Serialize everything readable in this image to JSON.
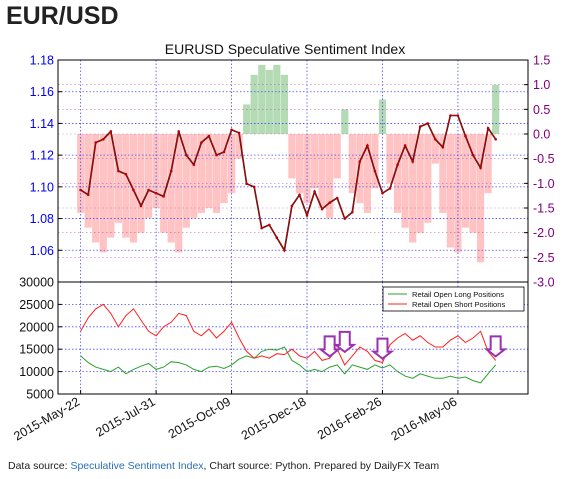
{
  "header": {
    "title": "EUR/USD"
  },
  "footer": {
    "prefix": "Data source: ",
    "link1": "Speculative Sentiment Index",
    "middle": ", Chart source: Python",
    "suffix": ". Prepared by DailyFX Team"
  },
  "colors": {
    "price": "#c00000",
    "ssi_positive": "#a8d5a8",
    "ssi_negative": "#ffb8b8",
    "long": "#2ca02c",
    "short": "#ff2020",
    "arrow": "#9b30b0",
    "left_axis": "#0000ff",
    "right_axis": "#800080"
  },
  "chart_data": [
    {
      "type": "line",
      "title": "EURUSD Speculative Sentiment Index",
      "x_ticks": [
        "2015-May-22",
        "2015-Jul-31",
        "2015-Oct-09",
        "2015-Dec-18",
        "2016-Feb-26",
        "2016-May-06"
      ],
      "x_range": [
        "2015-05-01",
        "2016-07-10"
      ],
      "ylim_left": [
        1.04,
        1.18
      ],
      "yticks_left": [
        "1.06",
        "1.08",
        "1.10",
        "1.12",
        "1.14",
        "1.16",
        "1.18"
      ],
      "ylim_right": [
        -3.0,
        1.5
      ],
      "yticks_right": [
        "-3.0",
        "-2.5",
        "-2.0",
        "-1.5",
        "-1.0",
        "-0.5",
        "0.0",
        "0.5",
        "1.0",
        "1.5"
      ],
      "price_series": {
        "dates": [
          "2015-05-22",
          "2015-05-29",
          "2015-06-05",
          "2015-06-12",
          "2015-06-19",
          "2015-06-26",
          "2015-07-03",
          "2015-07-10",
          "2015-07-17",
          "2015-07-24",
          "2015-07-31",
          "2015-08-07",
          "2015-08-14",
          "2015-08-21",
          "2015-08-28",
          "2015-09-04",
          "2015-09-11",
          "2015-09-18",
          "2015-09-25",
          "2015-10-02",
          "2015-10-09",
          "2015-10-16",
          "2015-10-23",
          "2015-10-30",
          "2015-11-06",
          "2015-11-13",
          "2015-11-20",
          "2015-11-27",
          "2015-12-04",
          "2015-12-11",
          "2015-12-18",
          "2015-12-25",
          "2016-01-01",
          "2016-01-08",
          "2016-01-15",
          "2016-01-22",
          "2016-01-29",
          "2016-02-05",
          "2016-02-12",
          "2016-02-19",
          "2016-02-26",
          "2016-03-04",
          "2016-03-11",
          "2016-03-18",
          "2016-03-25",
          "2016-04-01",
          "2016-04-08",
          "2016-04-15",
          "2016-04-22",
          "2016-04-29",
          "2016-05-06",
          "2016-05-13",
          "2016-05-20",
          "2016-05-27",
          "2016-06-03",
          "2016-06-10"
        ],
        "values": [
          1.098,
          1.095,
          1.128,
          1.13,
          1.135,
          1.11,
          1.108,
          1.098,
          1.088,
          1.098,
          1.096,
          1.094,
          1.11,
          1.135,
          1.12,
          1.114,
          1.128,
          1.132,
          1.12,
          1.122,
          1.136,
          1.134,
          1.102,
          1.1,
          1.074,
          1.076,
          1.068,
          1.06,
          1.088,
          1.095,
          1.082,
          1.097,
          1.086,
          1.09,
          1.093,
          1.08,
          1.084,
          1.116,
          1.126,
          1.11,
          1.096,
          1.099,
          1.114,
          1.126,
          1.116,
          1.138,
          1.14,
          1.13,
          1.125,
          1.145,
          1.145,
          1.132,
          1.12,
          1.112,
          1.137,
          1.13
        ]
      },
      "ssi_series": {
        "dates": [
          "2015-05-22",
          "2015-05-29",
          "2015-06-05",
          "2015-06-12",
          "2015-06-19",
          "2015-06-26",
          "2015-07-03",
          "2015-07-10",
          "2015-07-17",
          "2015-07-24",
          "2015-07-31",
          "2015-08-07",
          "2015-08-14",
          "2015-08-21",
          "2015-08-28",
          "2015-09-04",
          "2015-09-11",
          "2015-09-18",
          "2015-09-25",
          "2015-10-02",
          "2015-10-09",
          "2015-10-16",
          "2015-10-23",
          "2015-10-30",
          "2015-11-06",
          "2015-11-13",
          "2015-11-20",
          "2015-11-27",
          "2015-12-04",
          "2015-12-11",
          "2015-12-18",
          "2015-12-25",
          "2016-01-01",
          "2016-01-08",
          "2016-01-15",
          "2016-01-22",
          "2016-01-29",
          "2016-02-05",
          "2016-02-12",
          "2016-02-19",
          "2016-02-26",
          "2016-03-04",
          "2016-03-11",
          "2016-03-18",
          "2016-03-25",
          "2016-04-01",
          "2016-04-08",
          "2016-04-15",
          "2016-04-22",
          "2016-04-29",
          "2016-05-06",
          "2016-05-13",
          "2016-05-20",
          "2016-05-27",
          "2016-06-03",
          "2016-06-10"
        ],
        "values": [
          -1.6,
          -1.9,
          -2.2,
          -2.4,
          -2.1,
          -1.8,
          -2.1,
          -2.2,
          -2.0,
          -1.7,
          -1.5,
          -2.0,
          -2.2,
          -2.4,
          -1.9,
          -1.7,
          -1.6,
          -1.5,
          -1.6,
          -1.4,
          -1.2,
          -0.5,
          0.6,
          1.2,
          1.4,
          1.3,
          1.4,
          1.2,
          -0.9,
          -1.2,
          -1.4,
          -1.1,
          -1.5,
          -1.7,
          -0.9,
          0.5,
          -1.2,
          -1.4,
          -1.6,
          -1.1,
          0.7,
          -1.0,
          -1.6,
          -1.9,
          -2.2,
          -2.0,
          -1.8,
          -0.6,
          -1.6,
          -2.3,
          -2.4,
          -1.9,
          -2.0,
          -2.6,
          -1.2,
          1.0
        ]
      }
    },
    {
      "type": "line",
      "ylim": [
        5000,
        30000
      ],
      "yticks": [
        "5000",
        "10000",
        "15000",
        "20000",
        "25000",
        "30000"
      ],
      "x_range": [
        "2015-05-01",
        "2016-07-10"
      ],
      "legend_position": "top-right",
      "series": [
        {
          "name": "Retail Open Long Positions",
          "dates": [
            "2015-05-22",
            "2015-05-29",
            "2015-06-05",
            "2015-06-12",
            "2015-06-19",
            "2015-06-26",
            "2015-07-03",
            "2015-07-10",
            "2015-07-17",
            "2015-07-24",
            "2015-07-31",
            "2015-08-07",
            "2015-08-14",
            "2015-08-21",
            "2015-08-28",
            "2015-09-04",
            "2015-09-11",
            "2015-09-18",
            "2015-09-25",
            "2015-10-02",
            "2015-10-09",
            "2015-10-16",
            "2015-10-23",
            "2015-10-30",
            "2015-11-06",
            "2015-11-13",
            "2015-11-20",
            "2015-11-27",
            "2015-12-04",
            "2015-12-11",
            "2015-12-18",
            "2015-12-25",
            "2016-01-01",
            "2016-01-08",
            "2016-01-15",
            "2016-01-22",
            "2016-01-29",
            "2016-02-05",
            "2016-02-12",
            "2016-02-19",
            "2016-02-26",
            "2016-03-04",
            "2016-03-11",
            "2016-03-18",
            "2016-03-25",
            "2016-04-01",
            "2016-04-08",
            "2016-04-15",
            "2016-04-22",
            "2016-04-29",
            "2016-05-06",
            "2016-05-13",
            "2016-05-20",
            "2016-05-27",
            "2016-06-03",
            "2016-06-10"
          ],
          "values": [
            13500,
            12000,
            11000,
            10500,
            10000,
            11000,
            9500,
            10500,
            11200,
            11800,
            10500,
            11000,
            12200,
            12000,
            11500,
            10500,
            10000,
            11000,
            11200,
            10700,
            11500,
            12800,
            13500,
            13000,
            14500,
            15000,
            14800,
            15500,
            12500,
            11500,
            10000,
            10500,
            10000,
            11000,
            11500,
            9500,
            11500,
            11000,
            10500,
            11500,
            10800,
            11500,
            10000,
            9000,
            8500,
            9500,
            9000,
            8500,
            8500,
            9000,
            8500,
            8800,
            8000,
            7500,
            9500,
            11500
          ]
        },
        {
          "name": "Retail Open Short Positions",
          "dates": [
            "2015-05-22",
            "2015-05-29",
            "2015-06-05",
            "2015-06-12",
            "2015-06-19",
            "2015-06-26",
            "2015-07-03",
            "2015-07-10",
            "2015-07-17",
            "2015-07-24",
            "2015-07-31",
            "2015-08-07",
            "2015-08-14",
            "2015-08-21",
            "2015-08-28",
            "2015-09-04",
            "2015-09-11",
            "2015-09-18",
            "2015-09-25",
            "2015-10-02",
            "2015-10-09",
            "2015-10-16",
            "2015-10-23",
            "2015-10-30",
            "2015-11-06",
            "2015-11-13",
            "2015-11-20",
            "2015-11-27",
            "2015-12-04",
            "2015-12-11",
            "2015-12-18",
            "2015-12-25",
            "2016-01-01",
            "2016-01-08",
            "2016-01-15",
            "2016-01-22",
            "2016-01-29",
            "2016-02-05",
            "2016-02-12",
            "2016-02-19",
            "2016-02-26",
            "2016-03-04",
            "2016-03-11",
            "2016-03-18",
            "2016-03-25",
            "2016-04-01",
            "2016-04-08",
            "2016-04-15",
            "2016-04-22",
            "2016-04-29",
            "2016-05-06",
            "2016-05-13",
            "2016-05-20",
            "2016-05-27",
            "2016-06-03",
            "2016-06-10"
          ],
          "values": [
            19000,
            22000,
            24000,
            25000,
            23000,
            20000,
            22500,
            24000,
            21500,
            19000,
            18000,
            20000,
            21000,
            23000,
            22500,
            19000,
            18000,
            19500,
            17500,
            19000,
            21000,
            17500,
            14500,
            13000,
            13500,
            13000,
            14000,
            13800,
            15000,
            13500,
            13000,
            14500,
            12500,
            13000,
            15000,
            11500,
            13500,
            15500,
            14500,
            12500,
            12000,
            16000,
            17500,
            18500,
            17000,
            18000,
            16500,
            15500,
            15500,
            17000,
            18000,
            16500,
            17500,
            19000,
            14500,
            12500
          ]
        }
      ],
      "arrows": [
        {
          "date": "2016-01-08",
          "value": 12500
        },
        {
          "date": "2016-01-22",
          "value": 13500
        },
        {
          "date": "2016-02-26",
          "value": 12000
        },
        {
          "date": "2016-06-10",
          "value": 12500
        }
      ]
    }
  ]
}
